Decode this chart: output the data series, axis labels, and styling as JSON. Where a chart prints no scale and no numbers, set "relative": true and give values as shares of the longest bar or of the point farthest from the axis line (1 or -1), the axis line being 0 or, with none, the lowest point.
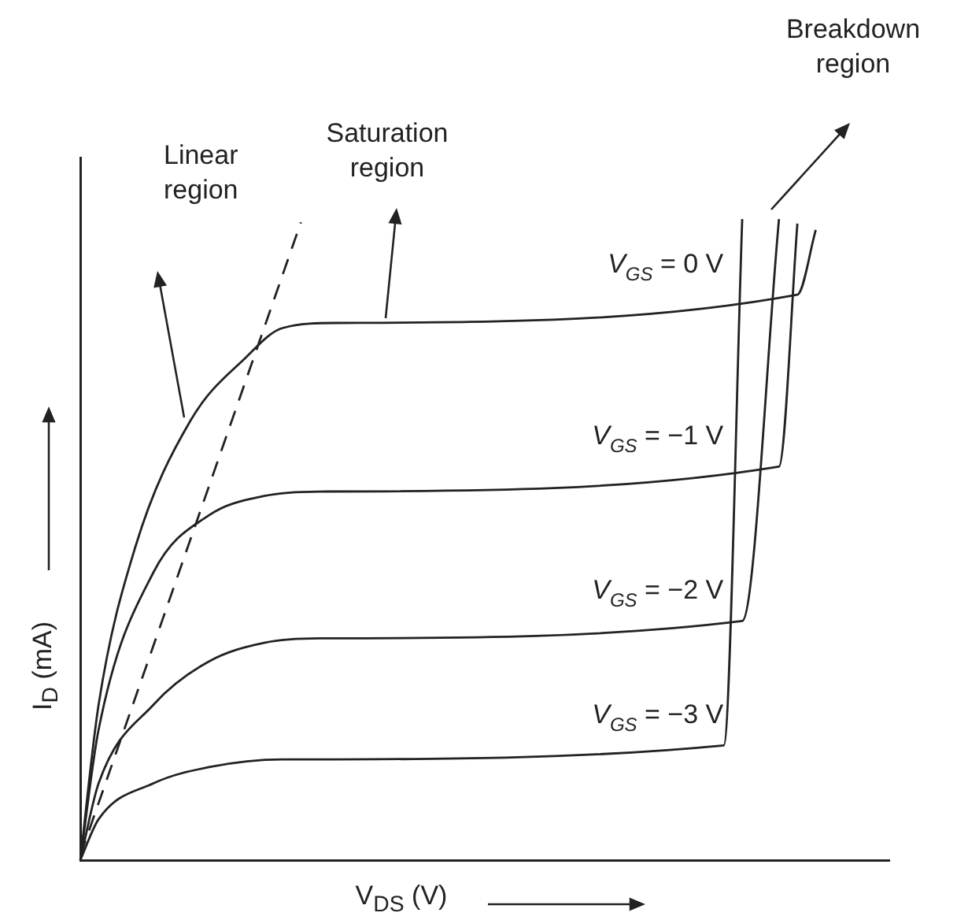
{
  "chart_data": {
    "type": "line",
    "relative": true,
    "xlabel": "V$_{DS}$ (V)",
    "ylabel": "I$_{D}$ (mA)",
    "categories": [
      null,
      null,
      null,
      null,
      null,
      null,
      null,
      null,
      null,
      null,
      null,
      null,
      null,
      null,
      null,
      null,
      null,
      null,
      null,
      null,
      null,
      null,
      null,
      null,
      null,
      null,
      null,
      null,
      null,
      null,
      null,
      null,
      null,
      null,
      null,
      null,
      null,
      null,
      null,
      null,
      null,
      null,
      null,
      null,
      null
    ],
    "series": [
      {
        "name": "V$_{GS}$ = 0 V",
        "color": "#222222",
        "values": [
          0,
          0.243,
          null,
          0.489,
          null,
          null,
          0.686,
          null,
          null,
          0.784,
          null,
          0.83,
          null,
          null,
          0.838,
          null,
          null,
          null,
          null,
          null,
          null,
          null,
          null,
          null,
          null,
          null,
          null,
          null,
          null,
          null,
          null,
          null,
          null,
          null,
          null,
          null,
          null,
          null,
          null,
          0.882,
          0.983,
          null,
          null,
          null,
          null
        ]
      },
      {
        "name": "V$_{GS}$ = −1 V",
        "color": "#222222",
        "values": [
          0,
          0.204,
          null,
          null,
          0.45,
          null,
          null,
          0.538,
          null,
          null,
          0.568,
          null,
          null,
          0.575,
          null,
          null,
          null,
          null,
          null,
          null,
          null,
          null,
          null,
          null,
          null,
          null,
          null,
          null,
          null,
          null,
          null,
          null,
          null,
          null,
          null,
          null,
          null,
          null,
          0.614,
          0.993,
          null,
          null,
          null,
          null,
          null
        ]
      },
      {
        "name": "V$_{GS}$ = −2 V",
        "color": "#222222",
        "values": [
          0,
          0.12,
          null,
          null,
          0.243,
          null,
          null,
          0.31,
          null,
          null,
          0.339,
          null,
          null,
          0.346,
          null,
          null,
          null,
          null,
          null,
          null,
          null,
          null,
          null,
          null,
          null,
          null,
          null,
          null,
          null,
          null,
          null,
          null,
          null,
          null,
          null,
          null,
          0.373,
          null,
          1.0,
          null,
          null,
          null,
          null,
          null,
          null
        ]
      },
      {
        "name": "V$_{GS}$ = −3 V",
        "color": "#222222",
        "values": [
          0,
          0.064,
          null,
          null,
          0.12,
          null,
          null,
          0.145,
          null,
          null,
          null,
          0.157,
          null,
          null,
          null,
          null,
          null,
          null,
          null,
          null,
          null,
          null,
          null,
          null,
          null,
          null,
          null,
          null,
          null,
          null,
          null,
          null,
          null,
          null,
          null,
          0.179,
          1.0,
          null,
          null,
          null,
          null,
          null,
          null,
          null,
          null
        ]
      },
      {
        "color": "#222222",
        "line_style": "dashed",
        "values": [
          0.007,
          null,
          null,
          null,
          null,
          null,
          null,
          null,
          null,
          null,
          null,
          null,
          0.995,
          null,
          null,
          null,
          null,
          null,
          null,
          null,
          null,
          null,
          null,
          null,
          null,
          null,
          null,
          null,
          null,
          null,
          null,
          null,
          null,
          null,
          null,
          null,
          null,
          null,
          null,
          null,
          null,
          null,
          null,
          null,
          null
        ]
      }
    ],
    "annotations": [
      "Linear\nregion",
      "Saturation\nregion",
      "Breakdown\nregion"
    ],
    "legend": false,
    "grid": false,
    "marker": "none",
    "line_style": "solid"
  }
}
